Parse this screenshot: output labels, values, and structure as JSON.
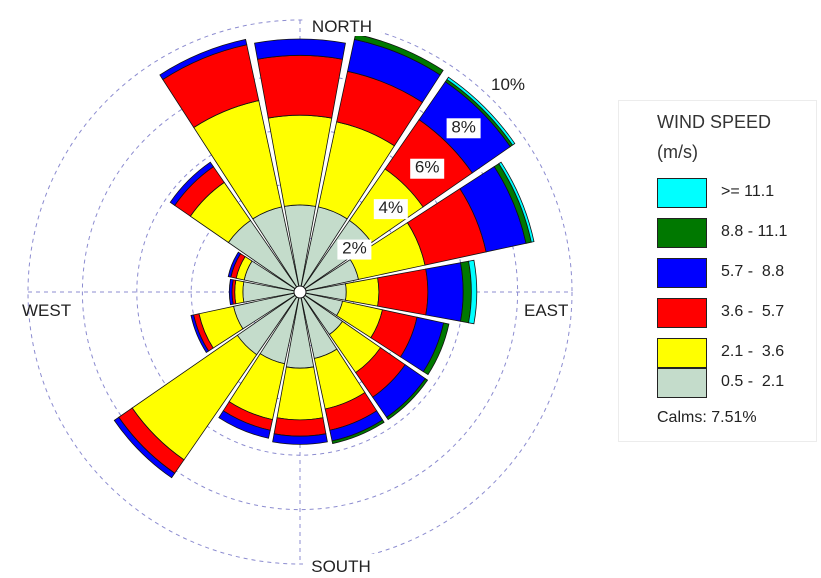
{
  "chart_data": {
    "type": "windrose",
    "title": "",
    "directions": [
      "N",
      "NNE",
      "NE",
      "ENE",
      "E",
      "ESE",
      "SE",
      "SSE",
      "S",
      "SSW",
      "SW",
      "WSW",
      "W",
      "WNW",
      "NW",
      "NNW"
    ],
    "compass_labels": {
      "north": "NORTH",
      "south": "SOUTH",
      "east": "EAST",
      "west": "WEST"
    },
    "ring_labels": [
      "2%",
      "4%",
      "6%",
      "8%",
      "10%"
    ],
    "ring_values": [
      2,
      4,
      6,
      8,
      10
    ],
    "series": [
      {
        "name": "0.5 - 2.1",
        "values": [
          3.2,
          3.2,
          3.2,
          2.2,
          1.7,
          1.6,
          1.9,
          2.5,
          2.8,
          2.7,
          2.8,
          2.5,
          2.1,
          2.1,
          3.2,
          3.2
        ]
      },
      {
        "name": "2.1 - 3.6",
        "values": [
          3.3,
          3.2,
          2.3,
          2.5,
          1.2,
          1.5,
          1.7,
          1.9,
          1.9,
          2.1,
          4.7,
          1.3,
          0.3,
          0.3,
          1.7,
          4.0
        ]
      },
      {
        "name": "3.6 - 5.7",
        "values": [
          2.2,
          1.9,
          2.2,
          2.3,
          1.8,
          1.3,
          1.1,
          0.8,
          0.6,
          0.4,
          0.6,
          0.2,
          0.1,
          0.2,
          0.7,
          2.1
        ]
      },
      {
        "name": "5.7 - 8.8",
        "values": [
          0.6,
          1.2,
          1.7,
          1.5,
          1.3,
          1.0,
          0.9,
          0.4,
          0.3,
          0.3,
          0.2,
          0.1,
          0.1,
          0.1,
          0.2,
          0.2
        ]
      },
      {
        "name": "8.8 - 11.1",
        "values": [
          0.0,
          0.2,
          0.1,
          0.2,
          0.3,
          0.2,
          0.1,
          0.1,
          0.0,
          0.0,
          0.0,
          0.0,
          0.0,
          0.0,
          0.0,
          0.0
        ]
      },
      {
        "name": ">= 11.1",
        "values": [
          0.0,
          0.0,
          0.1,
          0.1,
          0.2,
          0.0,
          0.0,
          0.0,
          0.0,
          0.0,
          0.0,
          0.0,
          0.0,
          0.0,
          0.0,
          0.0
        ]
      }
    ],
    "colors": [
      "#c4dccb",
      "#ffff00",
      "#ff0000",
      "#0000ff",
      "#007800",
      "#00ffff"
    ],
    "legend": {
      "title_line1": "WIND SPEED",
      "title_line2": "(m/s)",
      "entries": [
        ">= 11.1",
        "8.8 - 11.1",
        "5.7 -  8.8",
        "3.6 -  5.7",
        "2.1 -  3.6",
        "0.5 -  2.1"
      ],
      "entry_colors": [
        "#00ffff",
        "#007800",
        "#0000ff",
        "#ff0000",
        "#ffff00",
        "#c4dccb"
      ],
      "calms": "Calms: 7.51%",
      "placement": "right"
    }
  }
}
